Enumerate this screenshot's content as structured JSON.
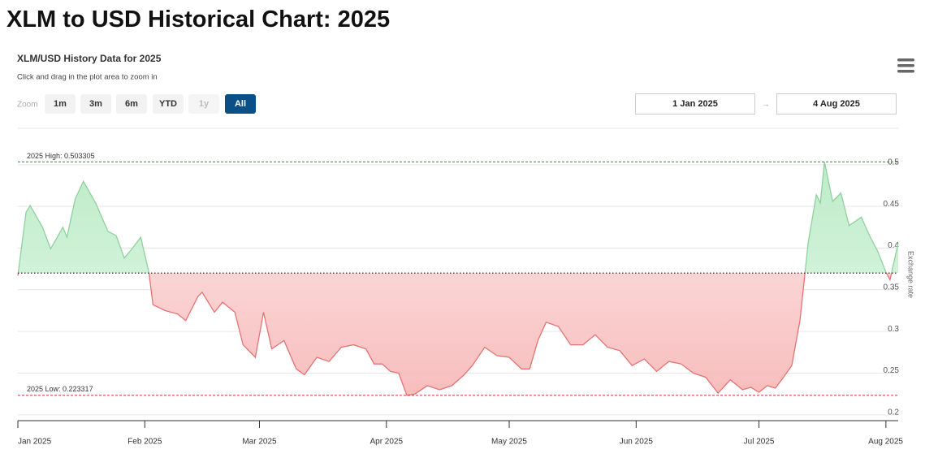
{
  "page_title": "XLM to USD Historical Chart: 2025",
  "chart_data": {
    "type": "line",
    "title": "XLM/USD History Data for 2025",
    "subtitle": "Click and drag in the plot area to zoom in",
    "zoom": {
      "label": "Zoom",
      "buttons": [
        "1m",
        "3m",
        "6m",
        "YTD",
        "1y",
        "All"
      ],
      "selected": 5,
      "disabled": [
        4
      ]
    },
    "range": {
      "from": "1 Jan 2025",
      "separator": "→",
      "to": "4 Aug 2025"
    },
    "y_label": "Exchange rate",
    "x": [
      "2025-01-01",
      "2025-01-03",
      "2025-01-04",
      "2025-01-07",
      "2025-01-09",
      "2025-01-12",
      "2025-01-13",
      "2025-01-15",
      "2025-01-17",
      "2025-01-20",
      "2025-01-23",
      "2025-01-25",
      "2025-01-27",
      "2025-01-29",
      "2025-01-31",
      "2025-02-02",
      "2025-02-03",
      "2025-02-06",
      "2025-02-09",
      "2025-02-11",
      "2025-02-14",
      "2025-02-15",
      "2025-02-18",
      "2025-02-20",
      "2025-02-23",
      "2025-02-25",
      "2025-02-28",
      "2025-03-02",
      "2025-03-04",
      "2025-03-07",
      "2025-03-10",
      "2025-03-12",
      "2025-03-15",
      "2025-03-18",
      "2025-03-21",
      "2025-03-24",
      "2025-03-27",
      "2025-03-29",
      "2025-03-31",
      "2025-04-02",
      "2025-04-04",
      "2025-04-06",
      "2025-04-08",
      "2025-04-11",
      "2025-04-14",
      "2025-04-17",
      "2025-04-20",
      "2025-04-22",
      "2025-04-25",
      "2025-04-28",
      "2025-05-01",
      "2025-05-04",
      "2025-05-06",
      "2025-05-08",
      "2025-05-10",
      "2025-05-13",
      "2025-05-16",
      "2025-05-19",
      "2025-05-22",
      "2025-05-25",
      "2025-05-28",
      "2025-05-31",
      "2025-06-03",
      "2025-06-06",
      "2025-06-09",
      "2025-06-12",
      "2025-06-15",
      "2025-06-18",
      "2025-06-21",
      "2025-06-24",
      "2025-06-27",
      "2025-06-29",
      "2025-07-01",
      "2025-07-03",
      "2025-07-05",
      "2025-07-07",
      "2025-07-09",
      "2025-07-11",
      "2025-07-13",
      "2025-07-15",
      "2025-07-16",
      "2025-07-17",
      "2025-07-19",
      "2025-07-21",
      "2025-07-23",
      "2025-07-26",
      "2025-07-28",
      "2025-07-30",
      "2025-08-01",
      "2025-08-02",
      "2025-08-04"
    ],
    "values": [
      0.367,
      0.443,
      0.451,
      0.425,
      0.399,
      0.425,
      0.413,
      0.459,
      0.48,
      0.454,
      0.42,
      0.415,
      0.388,
      0.4,
      0.413,
      0.371,
      0.332,
      0.325,
      0.321,
      0.313,
      0.342,
      0.347,
      0.323,
      0.335,
      0.323,
      0.284,
      0.269,
      0.323,
      0.279,
      0.289,
      0.255,
      0.248,
      0.269,
      0.264,
      0.281,
      0.284,
      0.279,
      0.261,
      0.261,
      0.252,
      0.25,
      0.2233,
      0.225,
      0.235,
      0.23,
      0.235,
      0.248,
      0.259,
      0.281,
      0.271,
      0.269,
      0.255,
      0.255,
      0.289,
      0.311,
      0.306,
      0.284,
      0.284,
      0.296,
      0.281,
      0.277,
      0.259,
      0.267,
      0.252,
      0.264,
      0.261,
      0.25,
      0.245,
      0.226,
      0.242,
      0.23,
      0.233,
      0.227,
      0.235,
      0.232,
      0.245,
      0.259,
      0.313,
      0.406,
      0.464,
      0.454,
      0.5033,
      0.456,
      0.466,
      0.427,
      0.437,
      0.415,
      0.396,
      0.371,
      0.362,
      0.406
    ],
    "threshold": 0.37,
    "colors": {
      "above_line": "#8fd19e",
      "above_fill": "#c9efd2",
      "below_line": "#e57373",
      "below_fill": "#f9c9c9",
      "threshold": "#222"
    },
    "reference_lines": [
      {
        "label": "2025 High: 0.503305",
        "value": 0.503305,
        "color": "#2e8b3a"
      },
      {
        "label": "2025 Low: 0.223317",
        "value": 0.223317,
        "color": "#d32f2f"
      }
    ],
    "xlim": [
      "2025-01-01",
      "2025-08-04"
    ],
    "xticks": [
      {
        "value": "2025-01-01",
        "label": "Jan 2025"
      },
      {
        "value": "2025-02-01",
        "label": "Feb 2025"
      },
      {
        "value": "2025-03-01",
        "label": "Mar 2025"
      },
      {
        "value": "2025-04-01",
        "label": "Apr 2025"
      },
      {
        "value": "2025-05-01",
        "label": "May 2025"
      },
      {
        "value": "2025-06-01",
        "label": "Jun 2025"
      },
      {
        "value": "2025-07-01",
        "label": "Jul 2025"
      },
      {
        "value": "2025-08-01",
        "label": "Aug 2025"
      }
    ],
    "ylim": [
      0.193,
      0.53
    ],
    "yticks": [
      0.2,
      0.25,
      0.3,
      0.35,
      0.4,
      0.45,
      0.5
    ],
    "grid": true
  }
}
